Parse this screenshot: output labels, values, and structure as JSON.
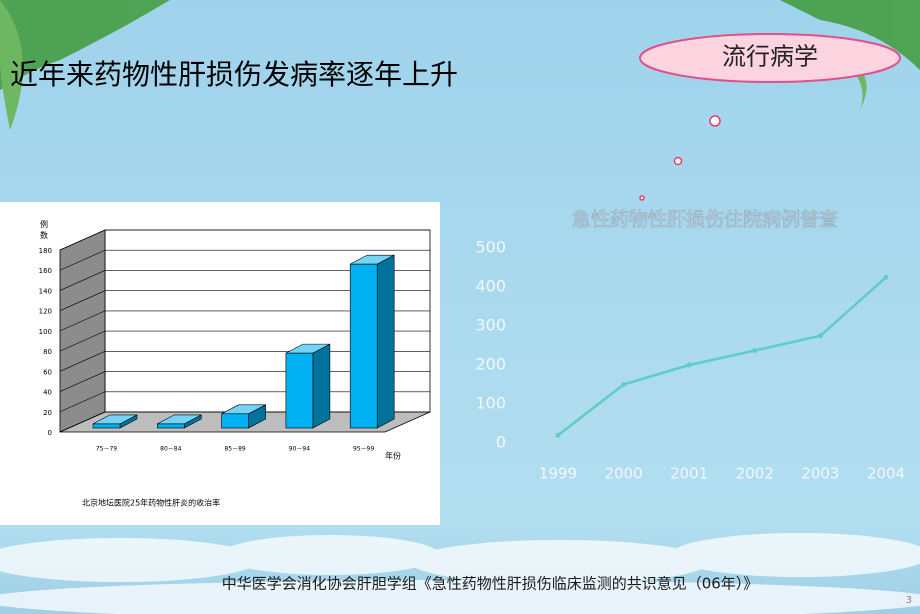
{
  "slide": {
    "title": "近年来药物性肝损伤发病率逐年上升",
    "badge": "流行病学",
    "footer": "中华医学会消化协会肝胆学组《急性药物性肝损伤临床监测的共识意见（06年）》",
    "page_number": "3"
  },
  "chart_data": [
    {
      "type": "bar",
      "y_label": "例数",
      "x_label": "年份",
      "caption": "北京地坛医院25年药物性肝炎的收治率",
      "categories": [
        "75－79",
        "80－84",
        "85－89",
        "90－94",
        "95－99"
      ],
      "values": [
        8,
        8,
        18,
        78,
        166
      ],
      "color": "#00b0f0",
      "ylim": [
        0,
        180
      ],
      "yticks": [
        0,
        20,
        40,
        60,
        80,
        100,
        120,
        140,
        160,
        180
      ],
      "grid": true
    },
    {
      "type": "line",
      "title": "急性药物性肝损伤住院病例普查",
      "categories": [
        "1999",
        "2000",
        "2001",
        "2002",
        "2003",
        "2004"
      ],
      "values": [
        20,
        150,
        200,
        237,
        275,
        425
      ],
      "color": "#5ecdc4",
      "ylim": [
        0,
        500
      ],
      "yticks": [
        0,
        100,
        200,
        300,
        400,
        500
      ],
      "grid": false
    }
  ]
}
